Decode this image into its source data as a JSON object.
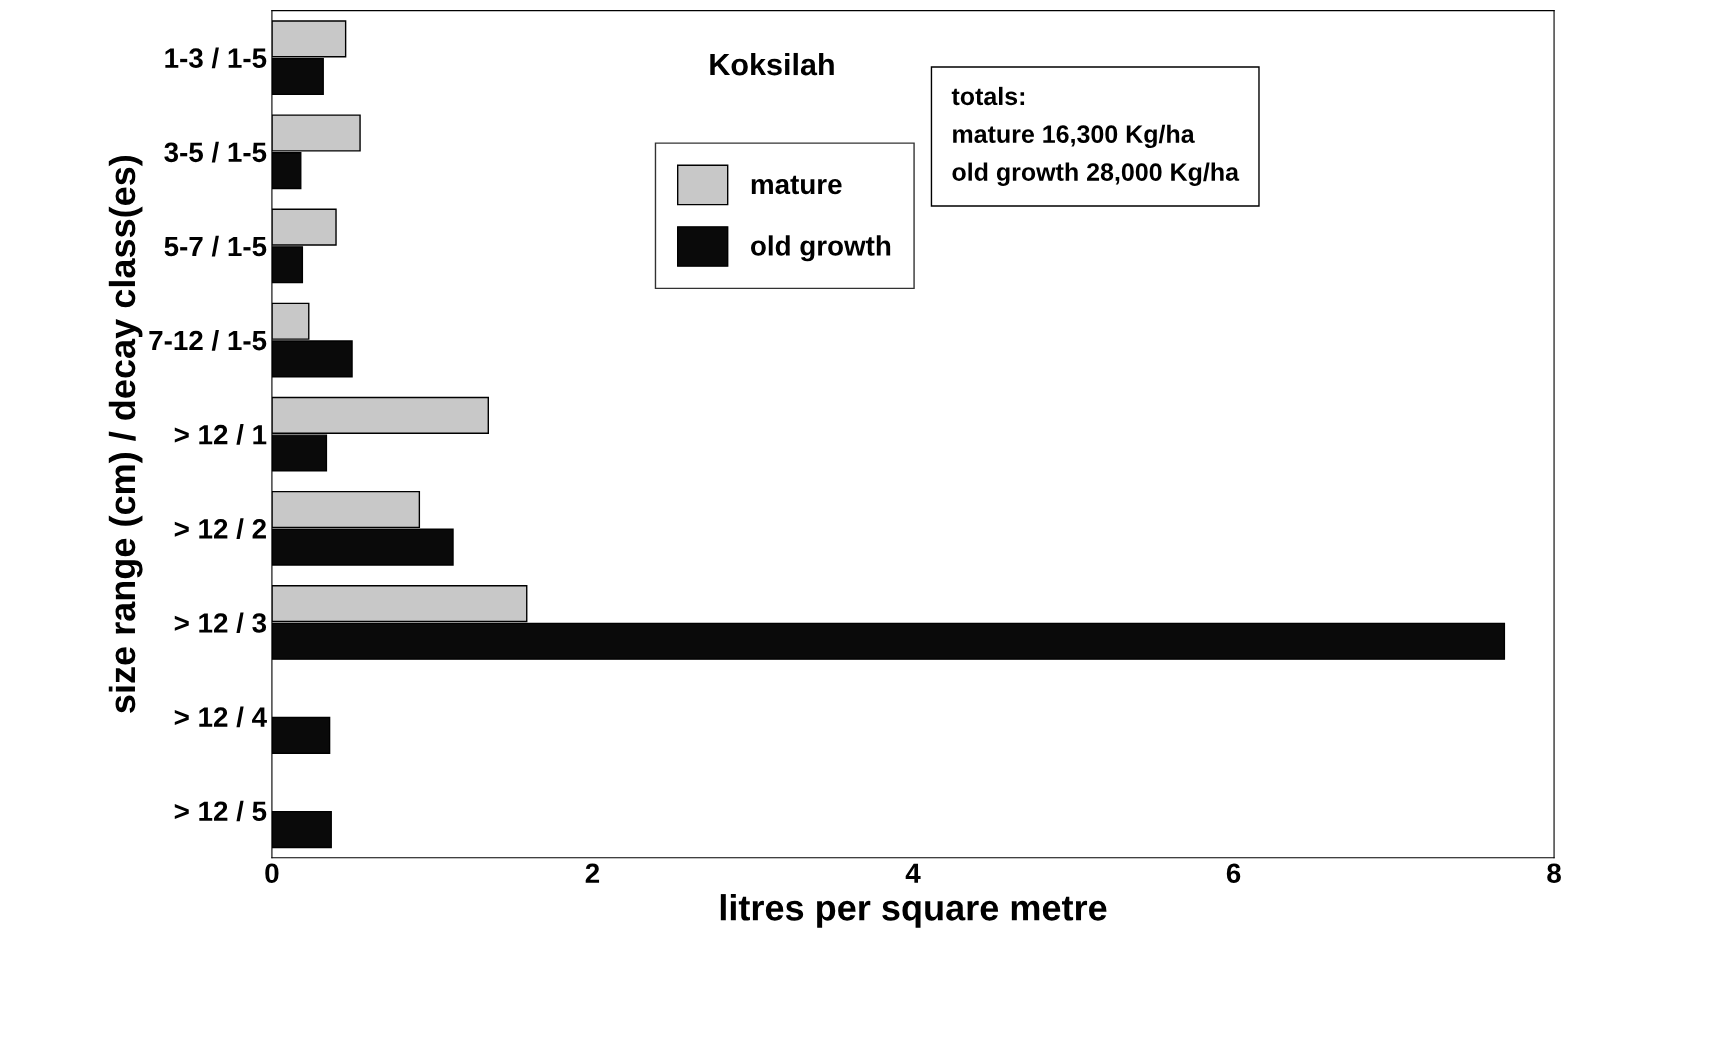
{
  "chart_data": {
    "type": "bar",
    "orientation": "horizontal",
    "title": "Koksilah",
    "categories": [
      "1-3 / 1-5",
      "3-5 / 1-5",
      "5-7 / 1-5",
      "7-12 / 1-5",
      "> 12 / 1",
      "> 12 / 2",
      "> 12 / 3",
      "> 12 / 4",
      "> 12 / 5"
    ],
    "series": [
      {
        "name": "mature",
        "color": "#c8c8c8",
        "values": [
          0.46,
          0.55,
          0.4,
          0.23,
          1.35,
          0.92,
          1.59,
          null,
          null
        ]
      },
      {
        "name": "old growth",
        "color": "#0a0a0a",
        "values": [
          0.32,
          0.18,
          0.19,
          0.5,
          0.34,
          1.13,
          7.69,
          0.36,
          0.37
        ]
      }
    ],
    "xlabel": "litres per square metre",
    "ylabel": "size range (cm) / decay class(es)",
    "xlim": [
      0,
      8
    ],
    "xticks": [
      0,
      2,
      4,
      6,
      8
    ],
    "annotations": [
      "totals:\nmature 16,300 Kg/ha\nold growth 28,000 Kg/ha"
    ],
    "legend": "top",
    "grid": false
  }
}
